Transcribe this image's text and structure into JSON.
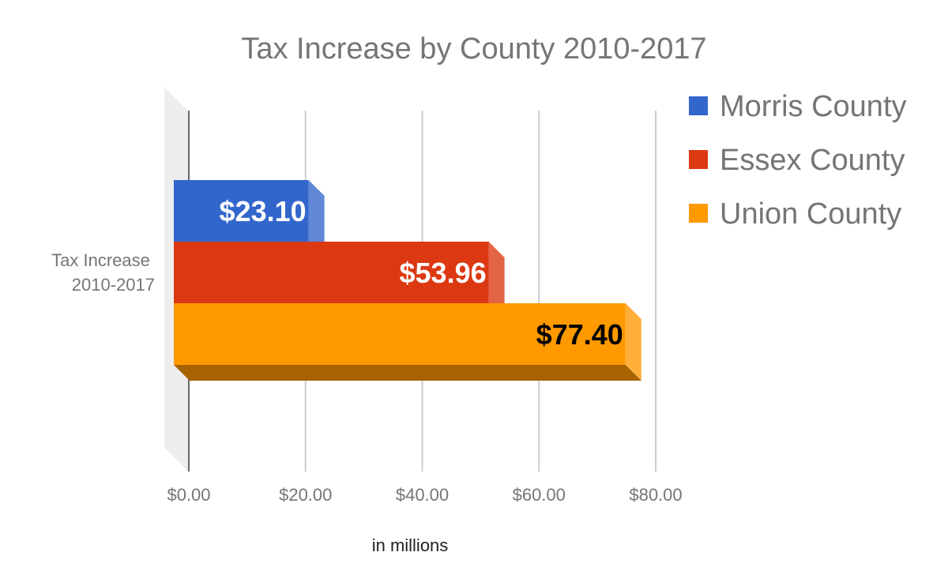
{
  "chart_data": {
    "type": "bar",
    "orientation": "horizontal",
    "three_d": true,
    "title": "Tax Increase by County 2010-2017",
    "xlabel": "in millions",
    "ylabel": "",
    "categories": [
      "Tax Increase 2010-2017"
    ],
    "category_label_lines": [
      "Tax Increase",
      "2010-2017"
    ],
    "series": [
      {
        "name": "Morris County",
        "values": [
          23.1
        ],
        "label": "$23.10",
        "color": "#3366cc",
        "label_color": "#ffffff"
      },
      {
        "name": "Essex County",
        "values": [
          53.96
        ],
        "label": "$53.96",
        "color": "#dc3912",
        "label_color": "#ffffff"
      },
      {
        "name": "Union County",
        "values": [
          77.4
        ],
        "label": "$77.40",
        "color": "#ff9900",
        "label_color": "#000000"
      }
    ],
    "xlim": [
      0,
      80
    ],
    "xticks": [
      0,
      20,
      40,
      60,
      80
    ],
    "xtick_labels": [
      "$0.00",
      "$20.00",
      "$40.00",
      "$60.00",
      "$80.00"
    ],
    "grid": true,
    "legend": "right"
  }
}
